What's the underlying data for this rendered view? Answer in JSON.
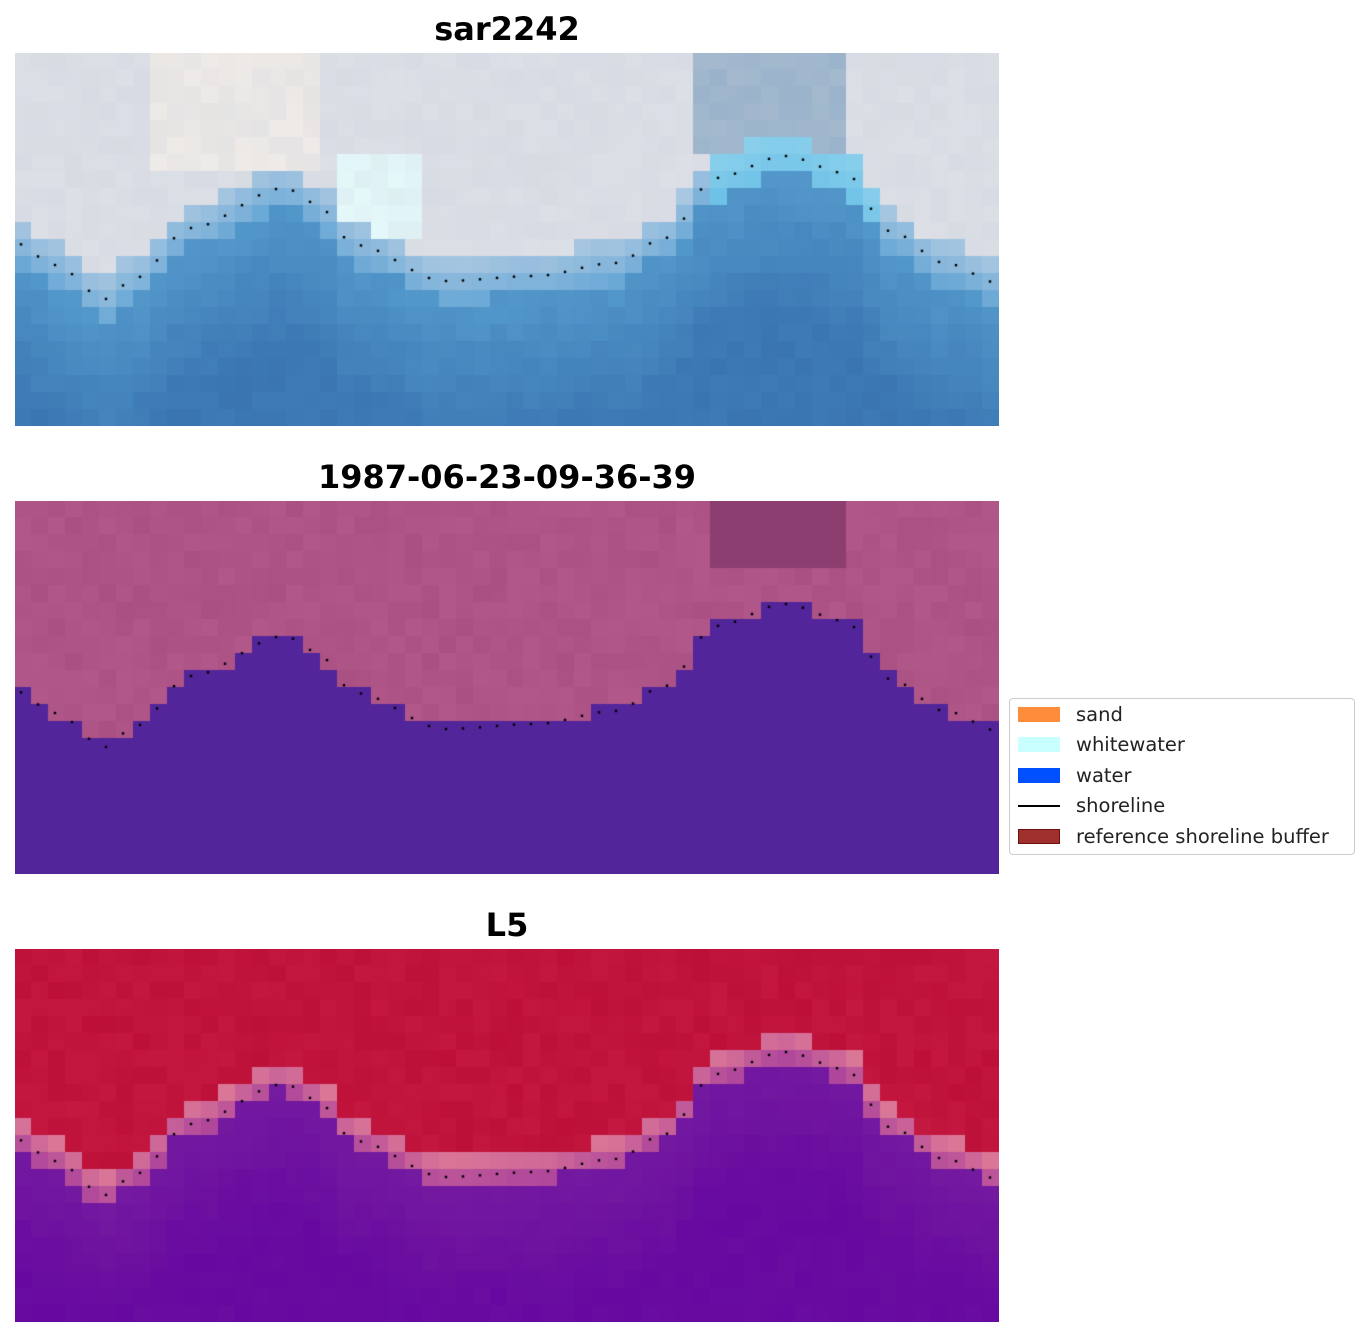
{
  "panels": [
    {
      "title": "sar2242",
      "kind": "rgb"
    },
    {
      "title": "1987-06-23-09-36-39",
      "kind": "classified"
    },
    {
      "title": "L5",
      "kind": "index"
    }
  ],
  "legend": {
    "placement": "center-right",
    "items": [
      {
        "label": "sand",
        "type": "patch",
        "color": "#ff8c3a",
        "edge": "#ff8c3a"
      },
      {
        "label": "whitewater",
        "type": "patch",
        "color": "#c8ffff",
        "edge": "#c8ffff"
      },
      {
        "label": "water",
        "type": "patch",
        "color": "#0050ff",
        "edge": "#0050ff"
      },
      {
        "label": "shoreline",
        "type": "line",
        "color": "#000000"
      },
      {
        "label": "reference shoreline buffer",
        "type": "patch",
        "color": "#a0302e",
        "edge": "#6e1010"
      }
    ]
  },
  "colors": {
    "sky_light": "#dcdfe6",
    "water_blue": "#3c82be",
    "class_land": "#aa5082",
    "class_water": "#52259a",
    "index_high": "#bd1038",
    "index_low": "#680aa0",
    "shoreline_dots": "#000000"
  }
}
